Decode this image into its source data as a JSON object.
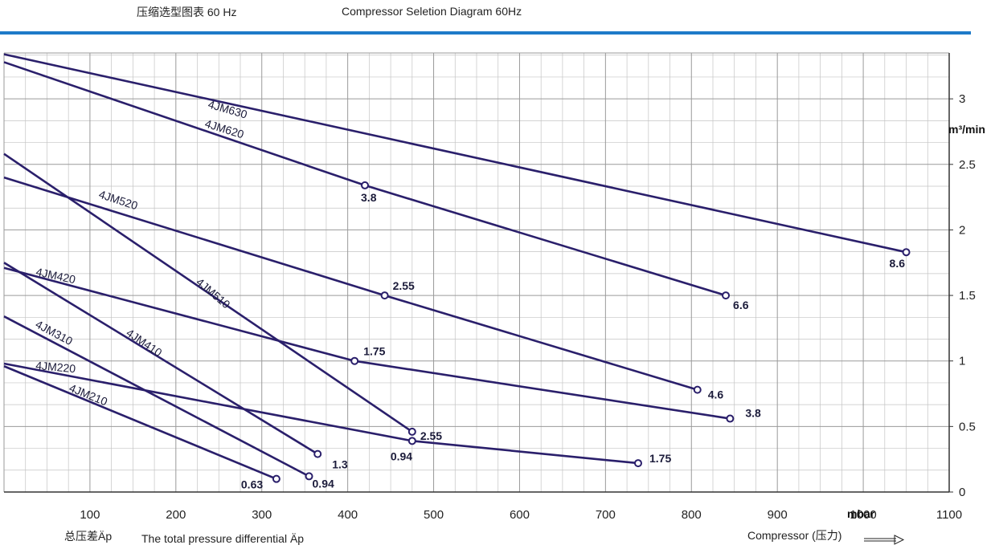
{
  "header": {
    "title_cn": "压缩选型图表 60 Hz",
    "title_en": "Compressor Seletion Diagram 60Hz"
  },
  "footer": {
    "left_cn": "总压差Äp",
    "left_en": "The total pressure differential Äp",
    "right": "Compressor (压力)"
  },
  "colors": {
    "accent_bar": "#1e7ac8",
    "series_line": "#2a1f6b",
    "grid_major": "#9a9a9a",
    "grid_minor": "#c4c4c4"
  },
  "chart_data": {
    "type": "line",
    "title": "Compressor Seletion Diagram 60Hz",
    "xlabel": "mbar",
    "ylabel": "m³/min",
    "xlim": [
      0,
      1100
    ],
    "ylim": [
      0,
      3.35
    ],
    "x_ticks": [
      100,
      200,
      300,
      400,
      500,
      600,
      700,
      800,
      900,
      1000,
      1100
    ],
    "y_ticks": [
      {
        "v": 0,
        "t": "0"
      },
      {
        "v": 0.5,
        "t": "0.5"
      },
      {
        "v": 1,
        "t": "1"
      },
      {
        "v": 1.5,
        "t": "1.5"
      },
      {
        "v": 2,
        "t": "2"
      },
      {
        "v": 2.5,
        "t": "2.5"
      },
      {
        "v": 3,
        "t": "3"
      }
    ],
    "grid": true,
    "series": [
      {
        "name": "4JM630",
        "x": [
          0,
          1050
        ],
        "y": [
          3.34,
          1.83
        ],
        "points": [
          {
            "x": 1050,
            "y": 1.83,
            "label": "8.6"
          }
        ]
      },
      {
        "name": "4JM620",
        "x": [
          0,
          420,
          840
        ],
        "y": [
          3.28,
          2.34,
          1.5
        ],
        "points": [
          {
            "x": 420,
            "y": 2.34,
            "label": "3.8"
          },
          {
            "x": 840,
            "y": 1.5,
            "label": "6.6"
          }
        ]
      },
      {
        "name": "4JM520",
        "x": [
          0,
          443,
          807
        ],
        "y": [
          2.4,
          1.5,
          0.78
        ],
        "points": [
          {
            "x": 443,
            "y": 1.5,
            "label": "2.55"
          },
          {
            "x": 807,
            "y": 0.78,
            "label": "4.6"
          }
        ]
      },
      {
        "name": "4JM510",
        "x": [
          0,
          475
        ],
        "y": [
          2.58,
          0.46
        ],
        "points": [
          {
            "x": 475,
            "y": 0.46,
            "label": "2.55"
          }
        ]
      },
      {
        "name": "4JM420",
        "x": [
          0,
          408,
          845
        ],
        "y": [
          1.71,
          1.0,
          0.56
        ],
        "points": [
          {
            "x": 408,
            "y": 1.0,
            "label": "1.75"
          },
          {
            "x": 845,
            "y": 0.56,
            "label": "3.8"
          }
        ]
      },
      {
        "name": "4JM410",
        "x": [
          0,
          365
        ],
        "y": [
          1.75,
          0.29
        ],
        "points": [
          {
            "x": 365,
            "y": 0.29,
            "label": "1.3"
          }
        ]
      },
      {
        "name": "4JM310",
        "x": [
          0,
          355
        ],
        "y": [
          1.34,
          0.12
        ],
        "points": [
          {
            "x": 355,
            "y": 0.12,
            "label": "0.94"
          }
        ]
      },
      {
        "name": "4JM220",
        "x": [
          0,
          475,
          738
        ],
        "y": [
          0.98,
          0.39,
          0.22
        ],
        "points": [
          {
            "x": 475,
            "y": 0.39,
            "label": "0.94"
          },
          {
            "x": 738,
            "y": 0.22,
            "label": "1.75"
          }
        ]
      },
      {
        "name": "4JM210",
        "x": [
          0,
          317
        ],
        "y": [
          0.96,
          0.1
        ],
        "points": [
          {
            "x": 317,
            "y": 0.1,
            "label": "0.63"
          }
        ]
      }
    ]
  }
}
